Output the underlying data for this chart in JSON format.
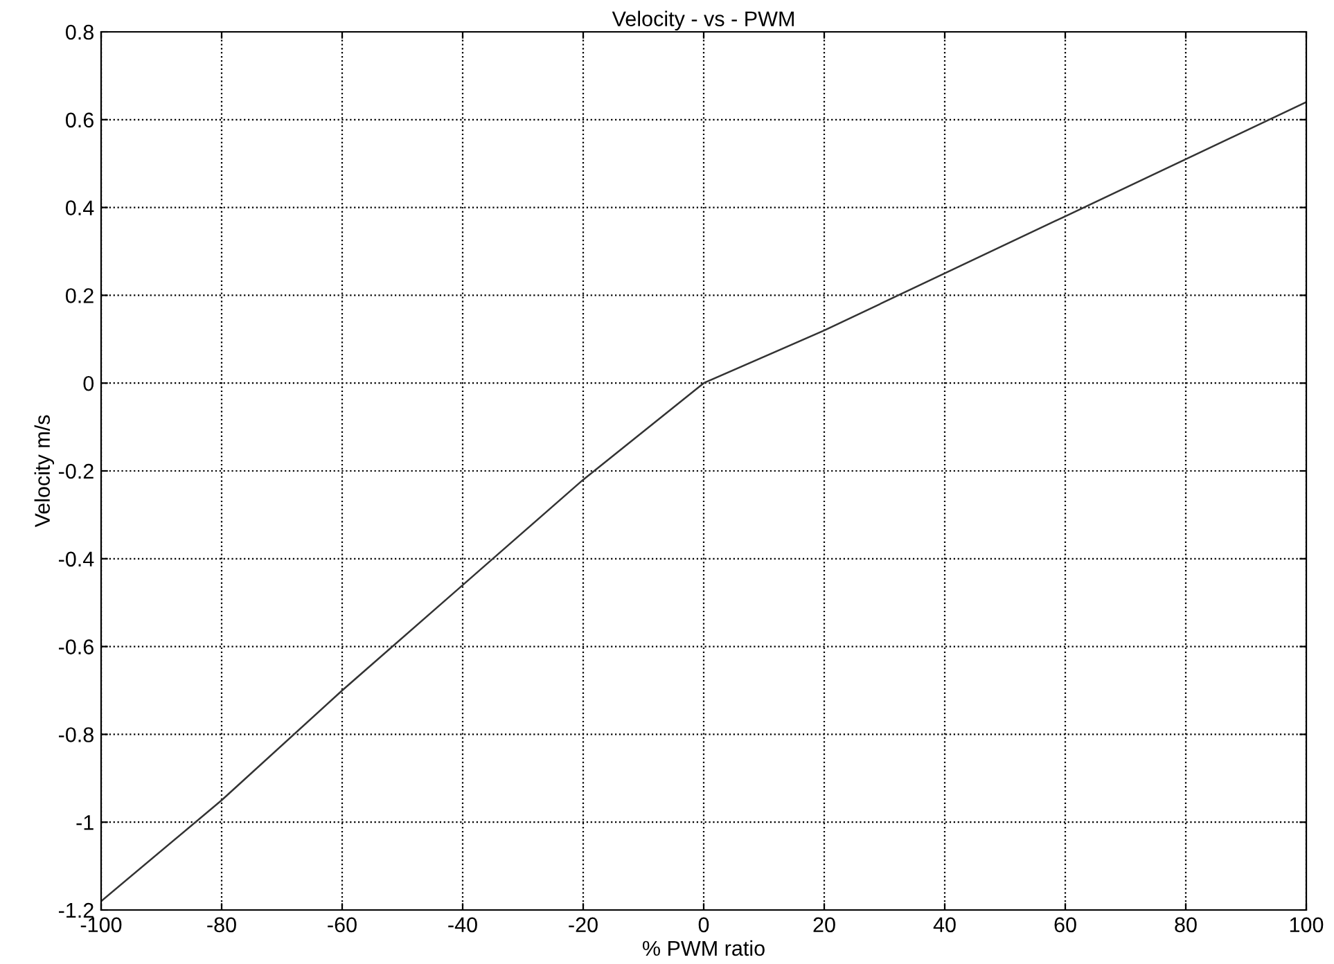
{
  "chart_data": {
    "type": "line",
    "title": "Velocity - vs - PWM",
    "xlabel": "% PWM ratio",
    "ylabel": "Velocity m/s",
    "x": [
      -100,
      -80,
      -60,
      -40,
      -20,
      0,
      20,
      40,
      60,
      80,
      100
    ],
    "series": [
      {
        "color": "#333333",
        "values": [
          -1.18,
          -0.95,
          -0.7,
          -0.46,
          -0.22,
          0,
          0.12,
          0.25,
          0.38,
          0.51,
          0.64
        ]
      }
    ],
    "xlim": [
      -100,
      100
    ],
    "xticks": [
      -100,
      -80,
      -60,
      -40,
      -20,
      0,
      20,
      40,
      60,
      80,
      100
    ],
    "ylim": [
      -1.2,
      0.8
    ],
    "yticks": [
      -1.2,
      -1,
      -0.8,
      -0.6,
      -0.4,
      -0.2,
      0,
      0.2,
      0.4,
      0.6,
      0.8
    ],
    "grid": true,
    "line_style": "solid"
  }
}
